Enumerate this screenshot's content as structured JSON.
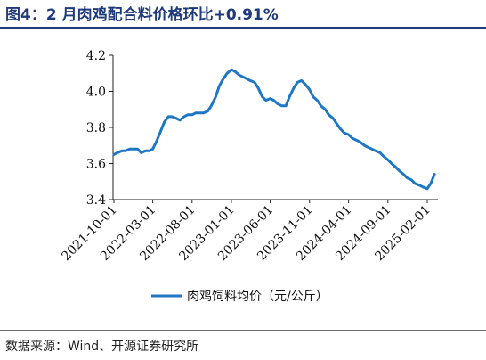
{
  "header": {
    "title": "图4：2 月肉鸡配合料价格环比+0.91%"
  },
  "footer": {
    "source": "数据来源：Wind、开源证券研究所"
  },
  "chart_data": {
    "type": "line",
    "title": "图4：2 月肉鸡配合料价格环比+0.91%",
    "xlabel": "",
    "ylabel": "",
    "ylim": [
      3.4,
      4.2
    ],
    "yticks": [
      "3.4",
      "3.6",
      "3.8",
      "4.0",
      "4.2"
    ],
    "xticks": [
      "2021-10-01",
      "2022-03-01",
      "2022-08-01",
      "2023-01-01",
      "2023-06-01",
      "2023-11-01",
      "2024-04-01",
      "2024-09-01",
      "2025-02-01"
    ],
    "grid": false,
    "legend": "bottom-center",
    "color": "#1f77c4",
    "series": [
      {
        "name": "肉鸡饲料均价（元/公斤）",
        "points": [
          [
            "2021-10-01",
            3.65
          ],
          [
            "2021-10-15",
            3.66
          ],
          [
            "2021-11-01",
            3.67
          ],
          [
            "2021-11-15",
            3.67
          ],
          [
            "2021-12-01",
            3.68
          ],
          [
            "2021-12-15",
            3.68
          ],
          [
            "2022-01-01",
            3.68
          ],
          [
            "2022-01-15",
            3.66
          ],
          [
            "2022-02-01",
            3.67
          ],
          [
            "2022-02-15",
            3.67
          ],
          [
            "2022-03-01",
            3.68
          ],
          [
            "2022-03-15",
            3.72
          ],
          [
            "2022-04-01",
            3.78
          ],
          [
            "2022-04-15",
            3.83
          ],
          [
            "2022-05-01",
            3.86
          ],
          [
            "2022-05-15",
            3.86
          ],
          [
            "2022-06-01",
            3.85
          ],
          [
            "2022-06-15",
            3.84
          ],
          [
            "2022-07-01",
            3.86
          ],
          [
            "2022-07-15",
            3.87
          ],
          [
            "2022-08-01",
            3.87
          ],
          [
            "2022-08-15",
            3.88
          ],
          [
            "2022-09-01",
            3.88
          ],
          [
            "2022-09-15",
            3.88
          ],
          [
            "2022-10-01",
            3.89
          ],
          [
            "2022-10-15",
            3.92
          ],
          [
            "2022-11-01",
            3.97
          ],
          [
            "2022-11-15",
            4.03
          ],
          [
            "2022-12-01",
            4.07
          ],
          [
            "2022-12-15",
            4.1
          ],
          [
            "2023-01-01",
            4.12
          ],
          [
            "2023-01-15",
            4.11
          ],
          [
            "2023-02-01",
            4.09
          ],
          [
            "2023-02-15",
            4.08
          ],
          [
            "2023-03-01",
            4.07
          ],
          [
            "2023-03-15",
            4.06
          ],
          [
            "2023-04-01",
            4.05
          ],
          [
            "2023-04-15",
            4.02
          ],
          [
            "2023-05-01",
            3.97
          ],
          [
            "2023-05-15",
            3.95
          ],
          [
            "2023-06-01",
            3.96
          ],
          [
            "2023-06-15",
            3.95
          ],
          [
            "2023-07-01",
            3.93
          ],
          [
            "2023-07-15",
            3.92
          ],
          [
            "2023-08-01",
            3.92
          ],
          [
            "2023-08-15",
            3.97
          ],
          [
            "2023-09-01",
            4.02
          ],
          [
            "2023-09-15",
            4.05
          ],
          [
            "2023-10-01",
            4.06
          ],
          [
            "2023-10-15",
            4.04
          ],
          [
            "2023-11-01",
            4.01
          ],
          [
            "2023-11-15",
            3.97
          ],
          [
            "2023-12-01",
            3.95
          ],
          [
            "2023-12-15",
            3.92
          ],
          [
            "2024-01-01",
            3.9
          ],
          [
            "2024-01-15",
            3.87
          ],
          [
            "2024-02-01",
            3.85
          ],
          [
            "2024-02-15",
            3.82
          ],
          [
            "2024-03-01",
            3.79
          ],
          [
            "2024-03-15",
            3.77
          ],
          [
            "2024-04-01",
            3.76
          ],
          [
            "2024-04-15",
            3.74
          ],
          [
            "2024-05-01",
            3.73
          ],
          [
            "2024-05-15",
            3.72
          ],
          [
            "2024-06-01",
            3.7
          ],
          [
            "2024-06-15",
            3.69
          ],
          [
            "2024-07-01",
            3.68
          ],
          [
            "2024-07-15",
            3.67
          ],
          [
            "2024-08-01",
            3.66
          ],
          [
            "2024-08-15",
            3.64
          ],
          [
            "2024-09-01",
            3.62
          ],
          [
            "2024-09-15",
            3.6
          ],
          [
            "2024-10-01",
            3.58
          ],
          [
            "2024-10-15",
            3.56
          ],
          [
            "2024-11-01",
            3.54
          ],
          [
            "2024-11-15",
            3.52
          ],
          [
            "2024-12-01",
            3.51
          ],
          [
            "2024-12-15",
            3.49
          ],
          [
            "2025-01-01",
            3.48
          ],
          [
            "2025-01-15",
            3.47
          ],
          [
            "2025-02-01",
            3.46
          ],
          [
            "2025-02-15",
            3.49
          ],
          [
            "2025-03-01",
            3.54
          ]
        ]
      }
    ]
  }
}
